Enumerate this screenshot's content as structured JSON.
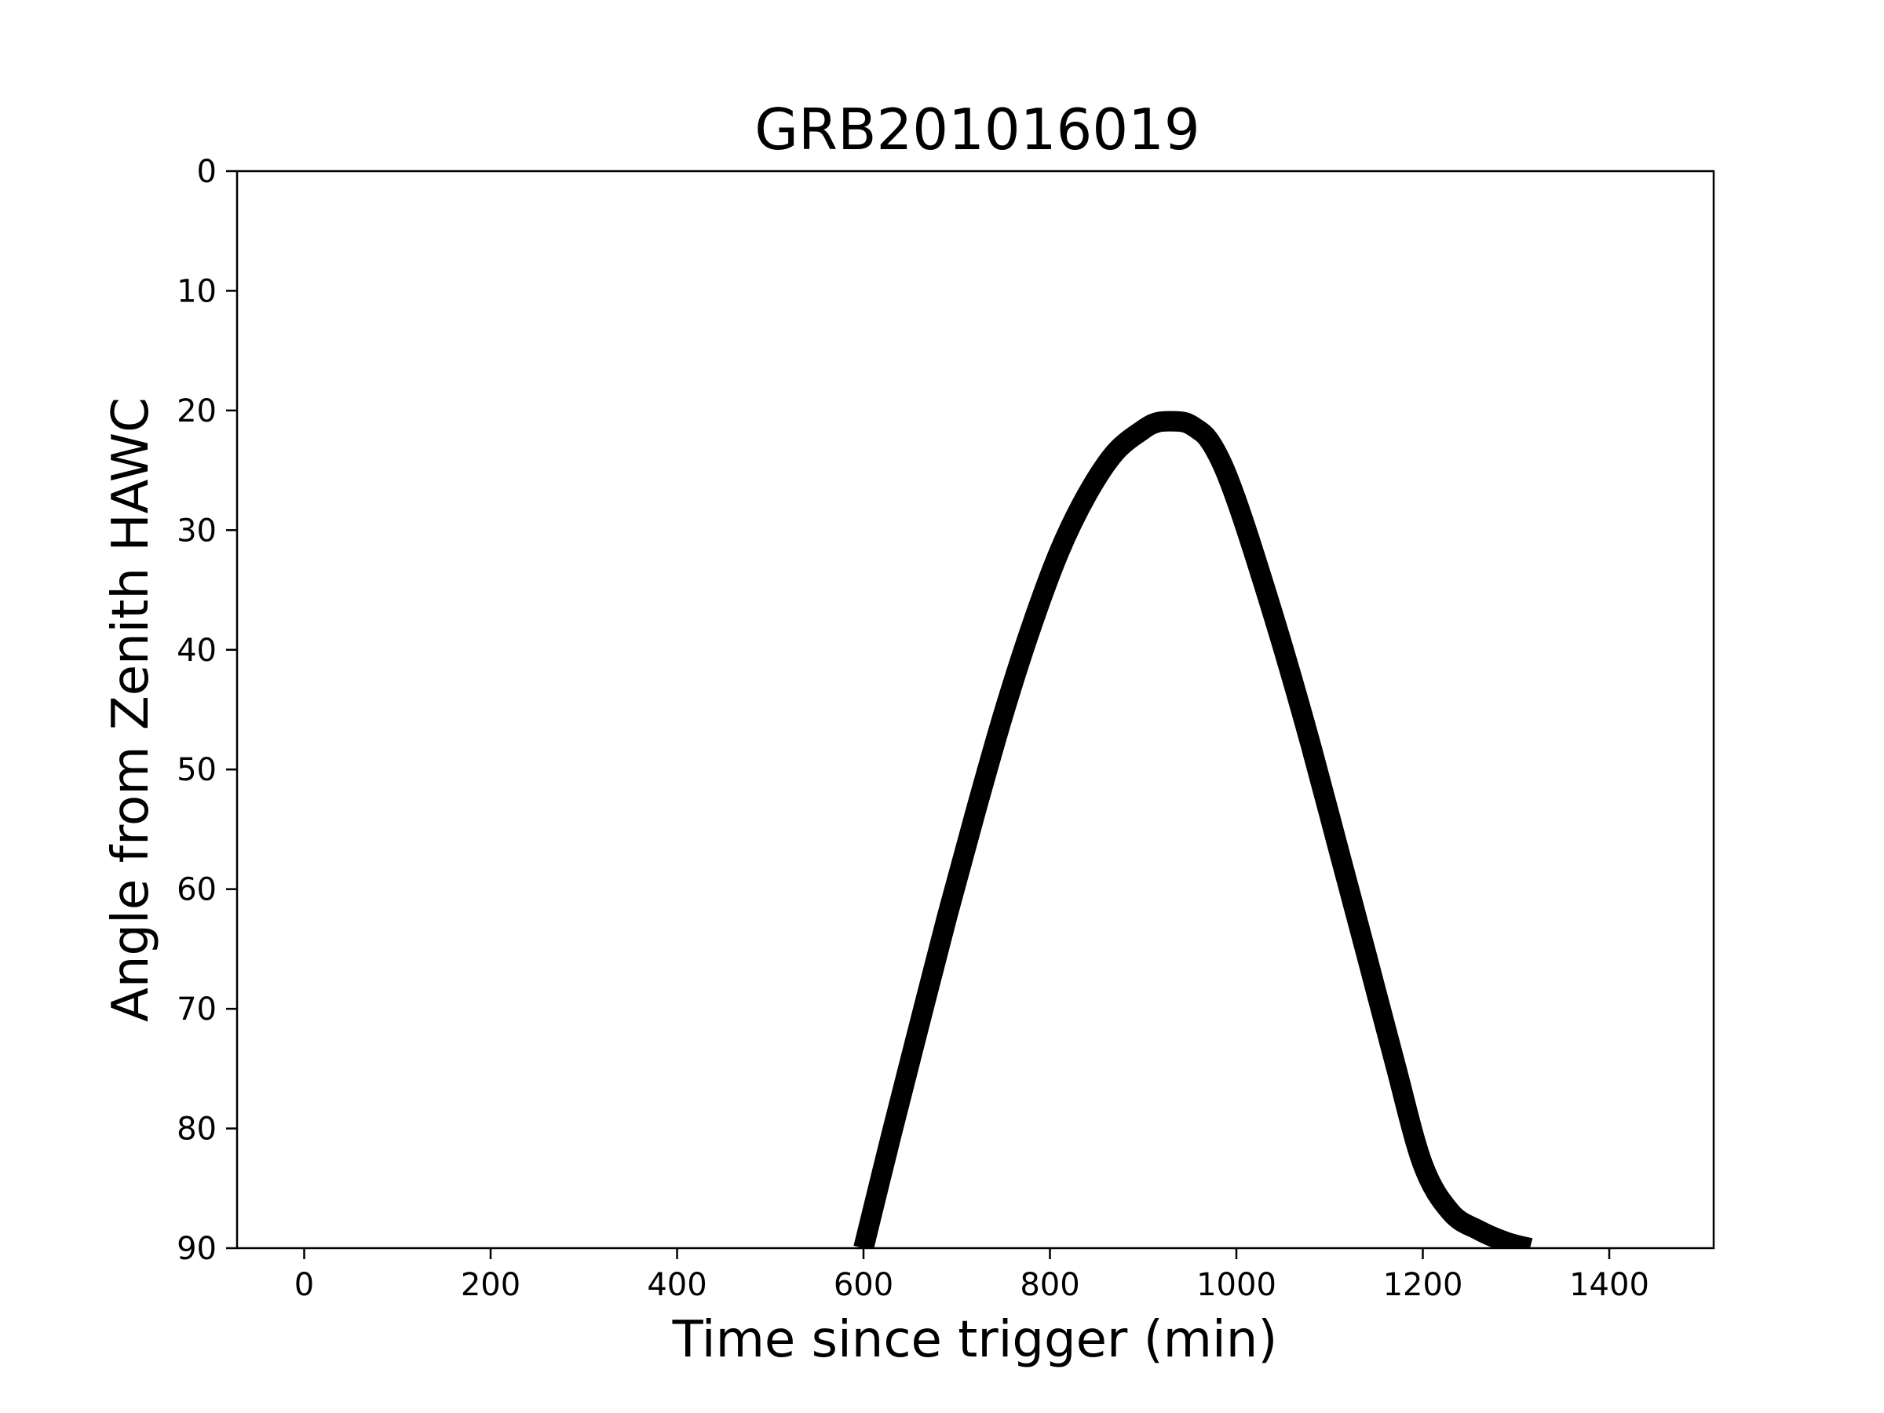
{
  "chart_data": {
    "type": "line",
    "title": "GRB201016019",
    "xlabel": "Time since trigger (min)",
    "ylabel": "Angle from Zenith HAWC",
    "xlim": [
      -72,
      1512
    ],
    "ylim": [
      0,
      90
    ],
    "y_inverted": true,
    "grid": false,
    "xticks": [
      0,
      200,
      400,
      600,
      800,
      1000,
      1200,
      1400
    ],
    "yticks": [
      0,
      10,
      20,
      30,
      40,
      50,
      60,
      70,
      80,
      90
    ],
    "series": [
      {
        "color": "#000000",
        "x": [
          600,
          630,
          660,
          690,
          720,
          750,
          780,
          810,
          840,
          870,
          900,
          915,
          930,
          945,
          957,
          970,
          985,
          1000,
          1020,
          1050,
          1080,
          1110,
          1140,
          1170,
          1200,
          1230,
          1260,
          1290,
          1315
        ],
        "y": [
          90,
          80.5,
          71.3,
          62.2,
          53.6,
          45.4,
          38.1,
          31.8,
          27.0,
          23.5,
          21.6,
          21.0,
          20.9,
          21.0,
          21.5,
          22.4,
          24.5,
          27.5,
          32.2,
          39.8,
          48.0,
          56.8,
          65.6,
          74.5,
          83.0,
          87.0,
          88.5,
          89.5,
          90
        ]
      }
    ]
  }
}
